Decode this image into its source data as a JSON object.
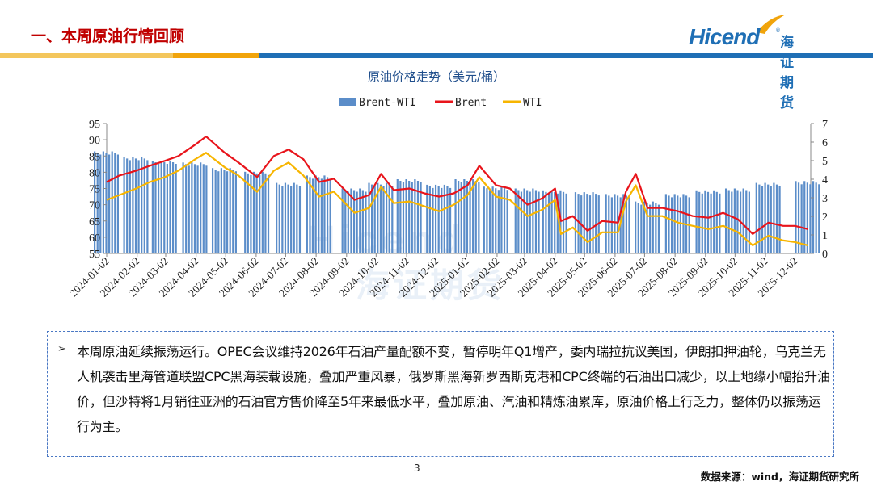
{
  "header": {
    "title": "一、本周原油行情回顾",
    "logo": {
      "brand": "Hicend",
      "registered": "®",
      "cn": "海证期货"
    }
  },
  "colors": {
    "title": "#c00000",
    "brand_blue": "#1f6fb5",
    "stripe_yellow": "#f3c65c",
    "stripe_orange": "#f1a40b",
    "stripe_blue": "#1f6fb5",
    "bar": "#5b8dc9",
    "brent": "#e8141b",
    "wti": "#f7b500"
  },
  "watermark": {
    "en": "Hicend",
    "cn": "海证期货"
  },
  "chart_data": {
    "type": "line",
    "title": "原油价格走势（美元/桶）",
    "legend": [
      "Brent-WTI",
      "Brent",
      "WTI"
    ],
    "legend_position": "top",
    "y_left": {
      "ylim": [
        55,
        95
      ],
      "ticks": [
        "95",
        "90",
        "85",
        "80",
        "75",
        "70",
        "65",
        "60",
        "55"
      ]
    },
    "y_right": {
      "ylim": [
        0,
        7
      ],
      "ticks": [
        "7",
        "6",
        "5",
        "4",
        "3",
        "2",
        "1",
        "0"
      ]
    },
    "x_ticks": [
      "2024-01-02",
      "2024-02-02",
      "2024-03-02",
      "2024-04-02",
      "2024-05-02",
      "2024-06-02",
      "2024-07-02",
      "2024-08-02",
      "2024-09-02",
      "2024-10-02",
      "2024-11-02",
      "2024-12-02",
      "2025-01-02",
      "2025-02-02",
      "2025-03-02",
      "2025-04-02",
      "2025-05-02",
      "2025-06-02",
      "2025-07-02",
      "2025-08-02",
      "2025-09-02",
      "2025-10-02",
      "2025-11-02",
      "2025-12-02"
    ],
    "series": [
      {
        "name": "Brent",
        "axis": "left",
        "x": [
          "2024-01-02",
          "2024-01-15",
          "2024-02-01",
          "2024-02-15",
          "2024-03-01",
          "2024-03-15",
          "2024-04-01",
          "2024-04-12",
          "2024-05-01",
          "2024-05-15",
          "2024-06-03",
          "2024-06-20",
          "2024-07-05",
          "2024-07-20",
          "2024-08-05",
          "2024-08-20",
          "2024-09-10",
          "2024-09-25",
          "2024-10-07",
          "2024-10-20",
          "2024-11-05",
          "2024-11-20",
          "2024-12-05",
          "2024-12-20",
          "2025-01-03",
          "2025-01-15",
          "2025-02-01",
          "2025-02-15",
          "2025-03-05",
          "2025-03-20",
          "2025-04-02",
          "2025-04-08",
          "2025-04-20",
          "2025-05-05",
          "2025-05-20",
          "2025-06-05",
          "2025-06-13",
          "2025-06-23",
          "2025-07-05",
          "2025-07-20",
          "2025-08-05",
          "2025-08-20",
          "2025-09-05",
          "2025-09-20",
          "2025-10-05",
          "2025-10-20",
          "2025-11-05",
          "2025-11-20",
          "2025-12-02",
          "2025-12-15"
        ],
        "values": [
          77.0,
          79.0,
          80.5,
          82.0,
          83.5,
          85.0,
          88.5,
          91.0,
          86.0,
          83.0,
          78.5,
          85.0,
          87.0,
          84.0,
          77.0,
          78.0,
          71.5,
          73.0,
          79.5,
          74.5,
          75.0,
          73.5,
          72.5,
          73.5,
          76.0,
          82.0,
          76.0,
          75.0,
          70.0,
          72.0,
          75.0,
          65.0,
          66.5,
          62.0,
          65.0,
          64.5,
          74.0,
          79.5,
          69.0,
          69.0,
          68.0,
          66.5,
          66.0,
          67.5,
          65.5,
          61.0,
          64.5,
          63.5,
          63.5,
          62.5
        ]
      },
      {
        "name": "WTI",
        "axis": "left",
        "x": [
          "2024-01-02",
          "2024-01-15",
          "2024-02-01",
          "2024-02-15",
          "2024-03-01",
          "2024-03-15",
          "2024-04-01",
          "2024-04-12",
          "2024-05-01",
          "2024-05-15",
          "2024-06-03",
          "2024-06-20",
          "2024-07-05",
          "2024-07-20",
          "2024-08-05",
          "2024-08-20",
          "2024-09-10",
          "2024-09-25",
          "2024-10-07",
          "2024-10-20",
          "2024-11-05",
          "2024-11-20",
          "2024-12-05",
          "2024-12-20",
          "2025-01-03",
          "2025-01-15",
          "2025-02-01",
          "2025-02-15",
          "2025-03-05",
          "2025-03-20",
          "2025-04-02",
          "2025-04-08",
          "2025-04-20",
          "2025-05-05",
          "2025-05-20",
          "2025-06-05",
          "2025-06-13",
          "2025-06-23",
          "2025-07-05",
          "2025-07-20",
          "2025-08-05",
          "2025-08-20",
          "2025-09-05",
          "2025-09-20",
          "2025-10-05",
          "2025-10-20",
          "2025-11-05",
          "2025-11-20",
          "2025-12-02",
          "2025-12-15"
        ],
        "values": [
          71.5,
          73.0,
          75.0,
          77.0,
          78.5,
          80.5,
          84.0,
          86.0,
          81.5,
          79.0,
          74.0,
          80.5,
          83.0,
          79.0,
          72.5,
          74.0,
          67.5,
          69.0,
          75.5,
          70.5,
          71.0,
          69.5,
          68.0,
          70.0,
          73.0,
          78.5,
          72.5,
          71.5,
          66.5,
          68.5,
          71.5,
          61.0,
          63.0,
          58.5,
          61.5,
          61.5,
          71.0,
          76.0,
          66.5,
          66.5,
          64.5,
          63.5,
          62.5,
          63.5,
          61.5,
          57.5,
          60.5,
          59.0,
          58.5,
          57.5
        ]
      },
      {
        "name": "Brent-WTI",
        "axis": "right",
        "type": "bar",
        "x": [
          "2024-01-02",
          "2024-02-01",
          "2024-03-01",
          "2024-04-01",
          "2024-05-01",
          "2024-06-03",
          "2024-07-05",
          "2024-08-05",
          "2024-09-10",
          "2024-10-07",
          "2024-11-05",
          "2024-12-05",
          "2025-01-03",
          "2025-02-01",
          "2025-03-05",
          "2025-04-02",
          "2025-05-05",
          "2025-06-05",
          "2025-07-05",
          "2025-08-05",
          "2025-09-05",
          "2025-10-05",
          "2025-11-05",
          "2025-12-15"
        ],
        "values": [
          5.5,
          5.2,
          5.0,
          4.9,
          4.6,
          4.4,
          3.8,
          4.2,
          3.5,
          3.8,
          4.0,
          3.7,
          4.0,
          3.6,
          3.5,
          3.4,
          3.3,
          3.2,
          2.8,
          3.2,
          3.4,
          3.5,
          3.8,
          3.9
        ]
      }
    ]
  },
  "textbox": {
    "bullet": "➢",
    "text": "本周原油延续振荡运行。OPEC会议维持2026年石油产量配额不变，暂停明年Q1增产，委内瑞拉抗议美国，伊朗扣押油轮，乌克兰无人机袭击里海管道联盟CPC黑海装载设施，叠加严重风暴，俄罗斯黑海新罗西斯克港和CPC终端的石油出口减少，以上地缘小幅抬升油价，但沙特将1月销往亚洲的石油官方售价降至5年来最低水平，叠加原油、汽油和精炼油累库，原油价格上行乏力，整体仍以振荡运行为主。"
  },
  "footer": {
    "page": "3",
    "source": "数据来源：wind，海证期货研究所"
  }
}
